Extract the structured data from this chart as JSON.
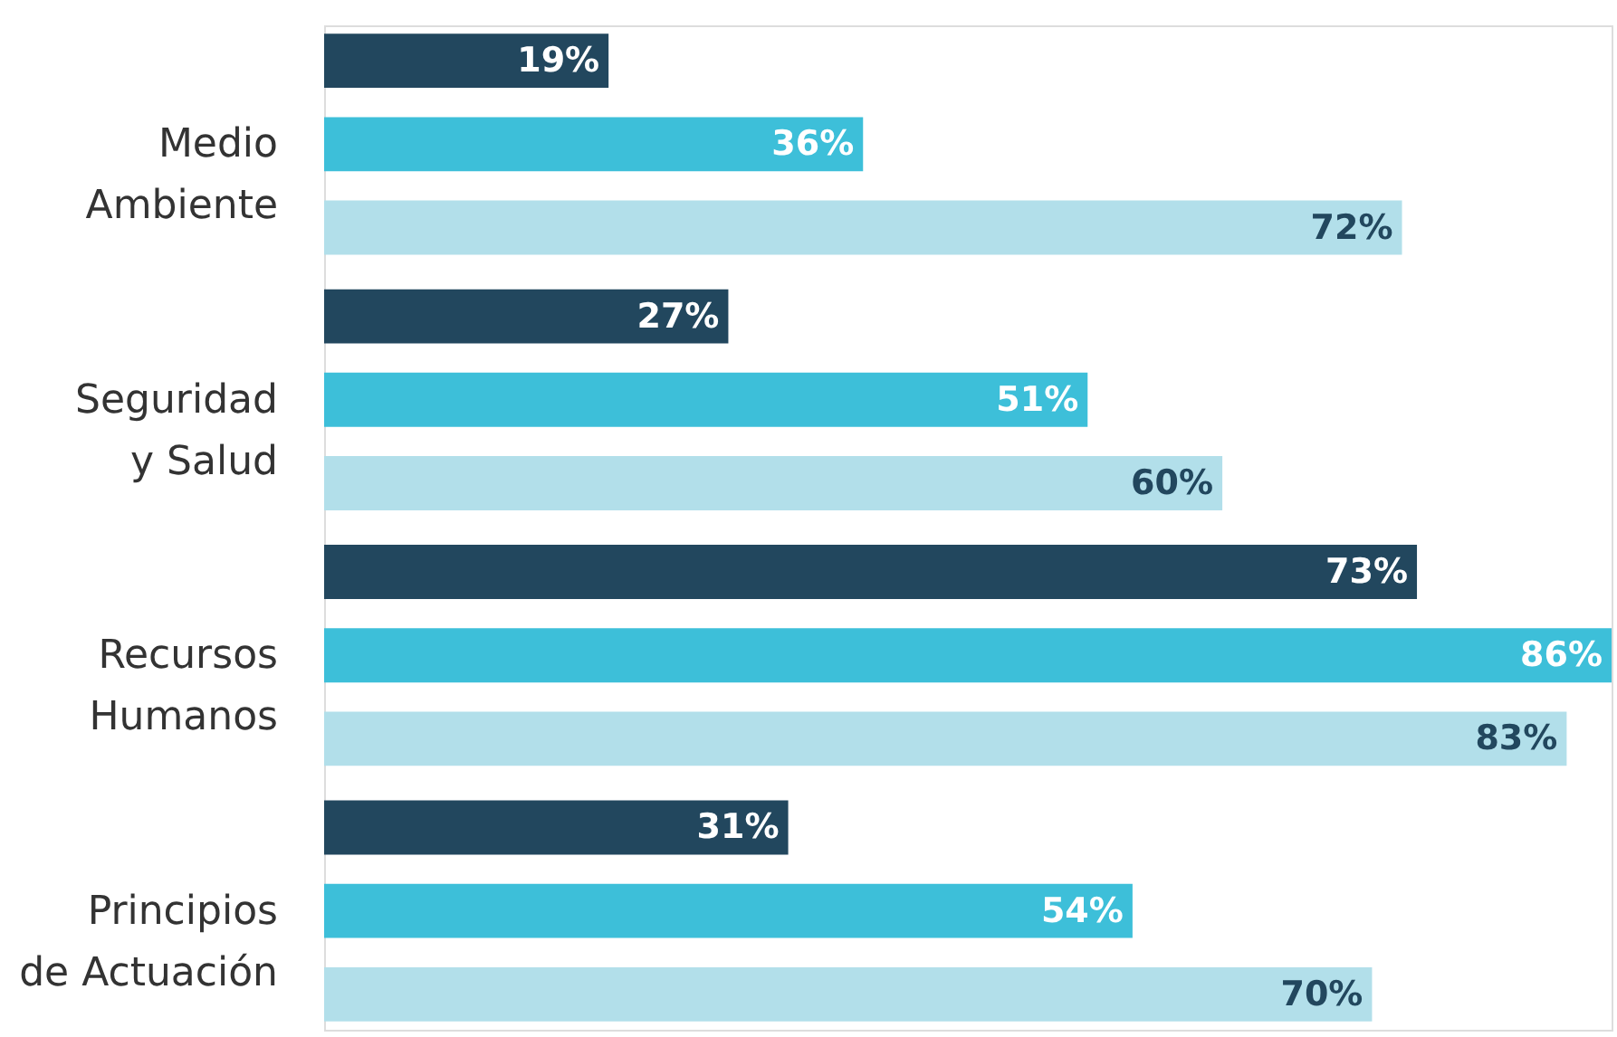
{
  "chart_data": {
    "type": "bar",
    "orientation": "horizontal",
    "categories": [
      "Medio\nAmbiente",
      "Seguridad\ny Salud",
      "Recursos\nHumanos",
      "Principios\nde Actuación"
    ],
    "series": [
      {
        "color": "#22475e",
        "values": [
          19,
          27,
          73,
          31
        ],
        "value_labels": [
          "19%",
          "27%",
          "73%",
          "31%"
        ]
      },
      {
        "color": "#3dbfd9",
        "values": [
          36,
          51,
          86,
          54
        ],
        "value_labels": [
          "36%",
          "51%",
          "86%",
          "54%"
        ]
      },
      {
        "color": "#b2dfea",
        "values": [
          72,
          60,
          83,
          70
        ],
        "value_labels": [
          "72%",
          "60%",
          "83%",
          "70%"
        ]
      }
    ],
    "grid": false,
    "legend": false
  }
}
